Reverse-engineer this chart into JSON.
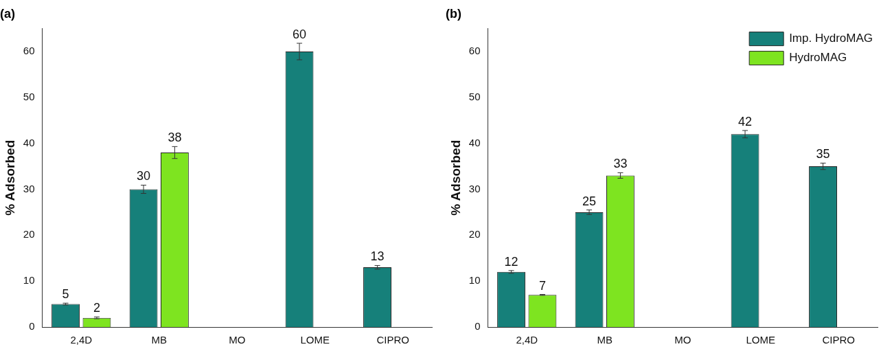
{
  "chart_data": [
    {
      "type": "bar",
      "title": "(a)",
      "ylabel": "% Adsorbed",
      "categories": [
        "2,4D",
        "MB",
        "MO",
        "LOME",
        "CIPRO"
      ],
      "ylim": [
        0,
        65
      ],
      "yticks": [
        0,
        10,
        20,
        30,
        40,
        50,
        60
      ],
      "grid": false,
      "legend": false,
      "data_labels": true,
      "series": [
        {
          "color": "#16807a",
          "values": [
            5,
            30,
            null,
            60,
            13
          ],
          "errors": [
            0.2,
            0.9,
            null,
            1.8,
            0.4
          ]
        },
        {
          "color": "#7ee420",
          "values": [
            2,
            38,
            null,
            null,
            null
          ],
          "errors": [
            0.2,
            1.3,
            null,
            null,
            null
          ]
        }
      ]
    },
    {
      "type": "bar",
      "title": "(b)",
      "ylabel": "% Adsorbed",
      "categories": [
        "2,4D",
        "MB",
        "MO",
        "LOME",
        "CIPRO"
      ],
      "ylim": [
        0,
        65
      ],
      "yticks": [
        0,
        10,
        20,
        30,
        40,
        50,
        60
      ],
      "grid": false,
      "legend": "top right",
      "data_labels": true,
      "series": [
        {
          "name": "Imp. HydroMAG",
          "color": "#16807a",
          "values": [
            12,
            25,
            null,
            42,
            35
          ],
          "errors": [
            0.3,
            0.5,
            null,
            0.8,
            0.7
          ]
        },
        {
          "name": "HydroMAG",
          "color": "#7ee420",
          "values": [
            7,
            33,
            null,
            null,
            null
          ],
          "errors": [
            0.1,
            0.6,
            null,
            null,
            null
          ]
        }
      ]
    }
  ]
}
